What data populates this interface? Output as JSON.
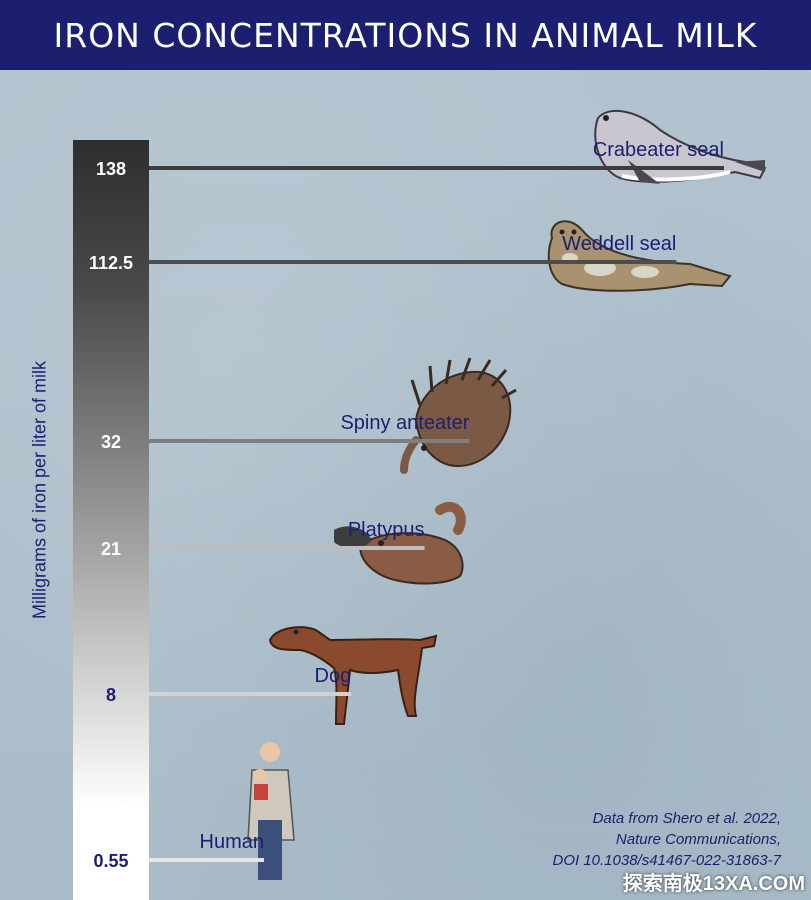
{
  "chart_data": {
    "type": "bar",
    "title": "IRON CONCENTRATIONS IN ANIMAL MILK",
    "ylabel": "Milligrams of iron per liter of milk",
    "categories": [
      "Crabeater seal",
      "Weddell seal",
      "Spiny anteater",
      "Platypus",
      "Dog",
      "Human"
    ],
    "values": [
      138,
      112.5,
      32,
      21,
      8,
      0.55
    ],
    "value_labels": [
      "138",
      "112.5",
      "32",
      "21",
      "8",
      "0.55"
    ],
    "orientation": "horizontal"
  },
  "credit": {
    "line1": "Data from Shero et al. 2022,",
    "line2": "Nature Communications,",
    "line3": "DOI 10.1038/s41467-022-31863-7"
  },
  "watermark": "探索南极13XA.COM",
  "colors": {
    "title_bg": "#1c1f6f",
    "text": "#1c1f6f"
  }
}
